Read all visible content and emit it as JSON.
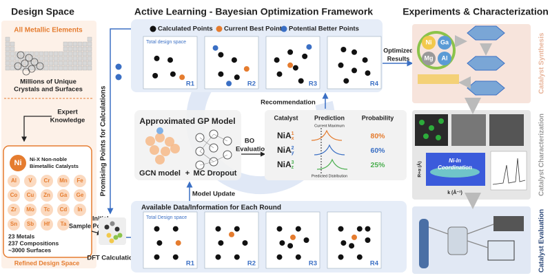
{
  "design_space": {
    "title": "Design Space",
    "all_elements": "All Metallic Elements",
    "millions": [
      "Millions of Unique",
      "Crystals and Surfaces"
    ],
    "expert": [
      "Expert",
      "Knowledge"
    ],
    "ni": "Ni",
    "ni_x": [
      "Ni-X Non-noble",
      "Bimetallic Catalysts"
    ],
    "elements": [
      "Al",
      "V",
      "Cr",
      "Mn",
      "Fe",
      "Co",
      "Cu",
      "Zn",
      "Ga",
      "Ge",
      "Zr",
      "Mo",
      "Tc",
      "Cd",
      "In",
      "Sn",
      "Sb",
      "Hf",
      "Ta"
    ],
    "stats": [
      "23 Metals",
      "237 Compositions",
      "~3000 Surfaces"
    ],
    "refined": "Refined Design Space"
  },
  "initial": [
    "Initial",
    "Sample Points"
  ],
  "dft": "DFT Calculations",
  "promising": "Promising Points for Calculations",
  "framework": {
    "title": "Active Learning - Bayesian Optimization Framework",
    "legend": [
      "Calculated Points",
      "Current Best Point",
      "Potential Better Points"
    ],
    "top_panel": {
      "label": "Total design space",
      "rounds": [
        "R1",
        "R2",
        "R3",
        "R4"
      ]
    },
    "optimized": [
      "Optimized",
      "Results"
    ],
    "recommendation": "Recommendation",
    "gp": {
      "title": "Approximated  GP Model",
      "gcn": "GCN model",
      "plus": "+",
      "dropout": "MC Dropout"
    },
    "bo": [
      "BO",
      "Evaluation"
    ],
    "table": {
      "headers": [
        "Catalyst",
        "Prediction",
        "Probability"
      ],
      "current_max": "Current Maximum",
      "rows": [
        {
          "base": "Ni",
          "element": "A",
          "sup": "1",
          "sub": "x",
          "probability": "80%"
        },
        {
          "base": "Ni",
          "element": "A",
          "sup": "2",
          "sub": "y",
          "probability": "60%"
        },
        {
          "base": "Ni",
          "element": "A",
          "sup": "3",
          "sub": "z",
          "probability": "25%"
        }
      ],
      "predicted": "Predicted Distribution"
    },
    "model_update": "Model Update",
    "bottom_panel": {
      "title": "Available Data/Information for Each Round",
      "label": "Total Design space",
      "rounds": [
        "R1",
        "R2",
        "R3",
        "R4"
      ]
    }
  },
  "experiments": {
    "title": "Experiments & Characterization",
    "stages": [
      "Catalyst Synthesis",
      "Catalyst Characterization",
      "Catalyst Evaluation"
    ],
    "cycle": [
      "Ni",
      "Ga",
      "Mg",
      "Al"
    ],
    "coordination": [
      "Ni-In",
      "Coordination"
    ],
    "r_axis": "R+α (Å)",
    "k_axis": "k (Å⁻¹)"
  }
}
